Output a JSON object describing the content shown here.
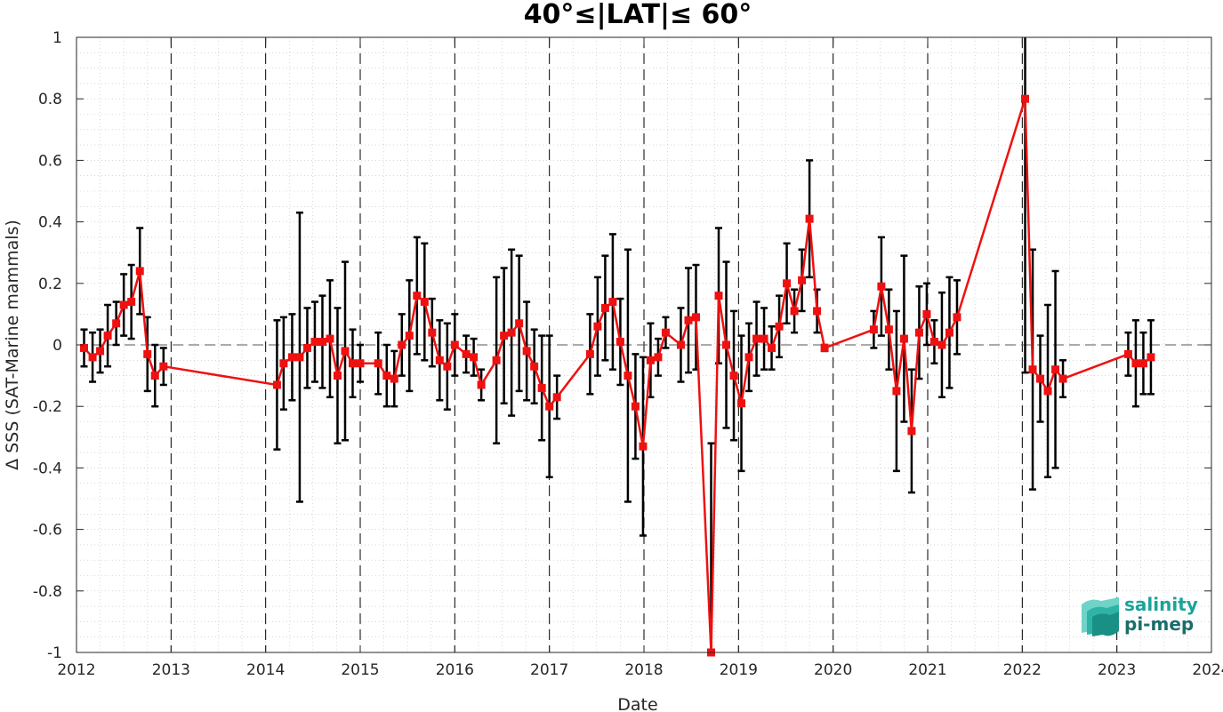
{
  "chart_data": {
    "type": "line",
    "title": "40°≤|LAT|≤ 60°",
    "xlabel": "Date",
    "ylabel": "Δ SSS (SAT-Marine mammals)",
    "xlim": [
      2012,
      2024
    ],
    "ylim": [
      -1,
      1
    ],
    "x_ticks": [
      "2012",
      "2013",
      "2014",
      "2015",
      "2016",
      "2017",
      "2018",
      "2019",
      "2020",
      "2021",
      "2022",
      "2023",
      "2024"
    ],
    "y_ticks": [
      "1",
      "0.8",
      "0.6",
      "0.4",
      "0.2",
      "0",
      "-0.2",
      "-0.4",
      "-0.6",
      "-0.8",
      "-1"
    ],
    "grid": "minor dotted",
    "year_boundaries": "dashed vertical lines at each January 1",
    "zero_line": "dashed horizontal at 0",
    "series": [
      {
        "color": "#ee1111",
        "marker": "square",
        "points": [
          {
            "x": 2012.08,
            "y": -0.01,
            "err": 0.06
          },
          {
            "x": 2012.17,
            "y": -0.04,
            "err": 0.08
          },
          {
            "x": 2012.25,
            "y": -0.02,
            "err": 0.07
          },
          {
            "x": 2012.33,
            "y": 0.03,
            "err": 0.1
          },
          {
            "x": 2012.42,
            "y": 0.07,
            "err": 0.07
          },
          {
            "x": 2012.5,
            "y": 0.13,
            "err": 0.1
          },
          {
            "x": 2012.58,
            "y": 0.14,
            "err": 0.12
          },
          {
            "x": 2012.67,
            "y": 0.24,
            "err": 0.14
          },
          {
            "x": 2012.75,
            "y": -0.03,
            "err": 0.12
          },
          {
            "x": 2012.83,
            "y": -0.1,
            "err": 0.1
          },
          {
            "x": 2012.92,
            "y": -0.07,
            "err": 0.06
          },
          {
            "x": 2014.12,
            "y": -0.13,
            "err": 0.21
          },
          {
            "x": 2014.19,
            "y": -0.06,
            "err": 0.15
          },
          {
            "x": 2014.28,
            "y": -0.04,
            "err": 0.14
          },
          {
            "x": 2014.36,
            "y": -0.04,
            "err": 0.47
          },
          {
            "x": 2014.44,
            "y": -0.01,
            "err": 0.13
          },
          {
            "x": 2014.52,
            "y": 0.01,
            "err": 0.13
          },
          {
            "x": 2014.6,
            "y": 0.01,
            "err": 0.15
          },
          {
            "x": 2014.68,
            "y": 0.02,
            "err": 0.19
          },
          {
            "x": 2014.76,
            "y": -0.1,
            "err": 0.22
          },
          {
            "x": 2014.84,
            "y": -0.02,
            "err": 0.29
          },
          {
            "x": 2014.92,
            "y": -0.06,
            "err": 0.11
          },
          {
            "x": 2015.0,
            "y": -0.06,
            "err": 0.06
          },
          {
            "x": 2015.19,
            "y": -0.06,
            "err": 0.1
          },
          {
            "x": 2015.28,
            "y": -0.1,
            "err": 0.1
          },
          {
            "x": 2015.36,
            "y": -0.11,
            "err": 0.09
          },
          {
            "x": 2015.44,
            "y": 0.0,
            "err": 0.1
          },
          {
            "x": 2015.52,
            "y": 0.03,
            "err": 0.18
          },
          {
            "x": 2015.6,
            "y": 0.16,
            "err": 0.19
          },
          {
            "x": 2015.68,
            "y": 0.14,
            "err": 0.19
          },
          {
            "x": 2015.76,
            "y": 0.04,
            "err": 0.11
          },
          {
            "x": 2015.84,
            "y": -0.05,
            "err": 0.13
          },
          {
            "x": 2015.92,
            "y": -0.07,
            "err": 0.14
          },
          {
            "x": 2016.0,
            "y": 0.0,
            "err": 0.1
          },
          {
            "x": 2016.12,
            "y": -0.03,
            "err": 0.06
          },
          {
            "x": 2016.2,
            "y": -0.04,
            "err": 0.06
          },
          {
            "x": 2016.28,
            "y": -0.13,
            "err": 0.05
          },
          {
            "x": 2016.44,
            "y": -0.05,
            "err": 0.27
          },
          {
            "x": 2016.52,
            "y": 0.03,
            "err": 0.22
          },
          {
            "x": 2016.6,
            "y": 0.04,
            "err": 0.27
          },
          {
            "x": 2016.68,
            "y": 0.07,
            "err": 0.22
          },
          {
            "x": 2016.76,
            "y": -0.02,
            "err": 0.16
          },
          {
            "x": 2016.84,
            "y": -0.07,
            "err": 0.12
          },
          {
            "x": 2016.92,
            "y": -0.14,
            "err": 0.17
          },
          {
            "x": 2017.0,
            "y": -0.2,
            "err": 0.23
          },
          {
            "x": 2017.08,
            "y": -0.17,
            "err": 0.07
          },
          {
            "x": 2017.43,
            "y": -0.03,
            "err": 0.13
          },
          {
            "x": 2017.51,
            "y": 0.06,
            "err": 0.16
          },
          {
            "x": 2017.59,
            "y": 0.12,
            "err": 0.17
          },
          {
            "x": 2017.67,
            "y": 0.14,
            "err": 0.22
          },
          {
            "x": 2017.75,
            "y": 0.01,
            "err": 0.14
          },
          {
            "x": 2017.83,
            "y": -0.1,
            "err": 0.41
          },
          {
            "x": 2017.91,
            "y": -0.2,
            "err": 0.17
          },
          {
            "x": 2017.99,
            "y": -0.33,
            "err": 0.29
          },
          {
            "x": 2018.07,
            "y": -0.05,
            "err": 0.12
          },
          {
            "x": 2018.15,
            "y": -0.04,
            "err": 0.06
          },
          {
            "x": 2018.23,
            "y": 0.04,
            "err": 0.05
          },
          {
            "x": 2018.39,
            "y": 0.0,
            "err": 0.12
          },
          {
            "x": 2018.47,
            "y": 0.08,
            "err": 0.17
          },
          {
            "x": 2018.55,
            "y": 0.09,
            "err": 0.17
          },
          {
            "x": 2018.71,
            "y": -1.0,
            "err": 0.68
          },
          {
            "x": 2018.79,
            "y": 0.16,
            "err": 0.22
          },
          {
            "x": 2018.87,
            "y": 0.0,
            "err": 0.27
          },
          {
            "x": 2018.95,
            "y": -0.1,
            "err": 0.21
          },
          {
            "x": 2019.03,
            "y": -0.19,
            "err": 0.22
          },
          {
            "x": 2019.11,
            "y": -0.04,
            "err": 0.11
          },
          {
            "x": 2019.19,
            "y": 0.02,
            "err": 0.12
          },
          {
            "x": 2019.27,
            "y": 0.02,
            "err": 0.1
          },
          {
            "x": 2019.35,
            "y": -0.01,
            "err": 0.07
          },
          {
            "x": 2019.43,
            "y": 0.06,
            "err": 0.1
          },
          {
            "x": 2019.51,
            "y": 0.2,
            "err": 0.13
          },
          {
            "x": 2019.59,
            "y": 0.11,
            "err": 0.07
          },
          {
            "x": 2019.67,
            "y": 0.21,
            "err": 0.1
          },
          {
            "x": 2019.75,
            "y": 0.41,
            "err": 0.19
          },
          {
            "x": 2019.83,
            "y": 0.11,
            "err": 0.07
          },
          {
            "x": 2019.91,
            "y": -0.01,
            "err": 0.01
          },
          {
            "x": 2020.43,
            "y": 0.05,
            "err": 0.06
          },
          {
            "x": 2020.51,
            "y": 0.19,
            "err": 0.16
          },
          {
            "x": 2020.59,
            "y": 0.05,
            "err": 0.13
          },
          {
            "x": 2020.67,
            "y": -0.15,
            "err": 0.26
          },
          {
            "x": 2020.75,
            "y": 0.02,
            "err": 0.27
          },
          {
            "x": 2020.83,
            "y": -0.28,
            "err": 0.2
          },
          {
            "x": 2020.91,
            "y": 0.04,
            "err": 0.15
          },
          {
            "x": 2020.99,
            "y": 0.1,
            "err": 0.1
          },
          {
            "x": 2021.07,
            "y": 0.01,
            "err": 0.07
          },
          {
            "x": 2021.15,
            "y": 0.0,
            "err": 0.17
          },
          {
            "x": 2021.23,
            "y": 0.04,
            "err": 0.18
          },
          {
            "x": 2021.31,
            "y": 0.09,
            "err": 0.12
          },
          {
            "x": 2022.03,
            "y": 0.8,
            "err": 0.89
          },
          {
            "x": 2022.11,
            "y": -0.08,
            "err": 0.39
          },
          {
            "x": 2022.19,
            "y": -0.11,
            "err": 0.14
          },
          {
            "x": 2022.27,
            "y": -0.15,
            "err": 0.28
          },
          {
            "x": 2022.35,
            "y": -0.08,
            "err": 0.32
          },
          {
            "x": 2022.43,
            "y": -0.11,
            "err": 0.06
          },
          {
            "x": 2023.12,
            "y": -0.03,
            "err": 0.07
          },
          {
            "x": 2023.2,
            "y": -0.06,
            "err": 0.14
          },
          {
            "x": 2023.28,
            "y": -0.06,
            "err": 0.1
          },
          {
            "x": 2023.36,
            "y": -0.04,
            "err": 0.12
          }
        ]
      }
    ],
    "colors": {
      "line": "#ee1111",
      "errorbar": "#000000",
      "grid": "#bfbfbf",
      "axis": "#262626"
    }
  },
  "logo": {
    "line1": "salinity",
    "line2": "pi-mep",
    "color_line1": "#1aa39a",
    "color_line2": "#1a6e6a"
  }
}
